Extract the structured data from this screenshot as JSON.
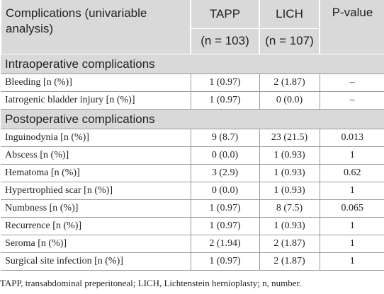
{
  "table": {
    "header": {
      "label": "Complications (univariable analysis)",
      "columns": [
        "TAPP",
        "LICH"
      ],
      "counts": [
        "(n = 103)",
        "(n = 107)"
      ],
      "p_value": "P-value"
    },
    "sections": [
      {
        "title": "Intraoperative complications",
        "rows": [
          [
            "Bleeding [n (%)]",
            "1 (0.97)",
            "2 (1.87)",
            "–"
          ],
          [
            "Iatrogenic bladder injury [n (%)]",
            "1 (0.97)",
            "0 (0.0)",
            "–"
          ]
        ]
      },
      {
        "title": "Postoperative complications",
        "rows": [
          [
            "Inguinodynia [n (%)]",
            "9 (8.7)",
            "23 (21.5)",
            "0.013"
          ],
          [
            "Abscess [n (%)]",
            "0 (0.0)",
            "1 (0.93)",
            "1"
          ],
          [
            "Hematoma [n (%)]",
            "3 (2.9)",
            "1 (0.93)",
            "0.62"
          ],
          [
            "Hypertrophied scar [n (%)]",
            "0 (0.0)",
            "1 (0.93)",
            "1"
          ],
          [
            "Numbness [n (%)]",
            "1 (0.97)",
            "8 (7.5)",
            "0.065"
          ],
          [
            "Recurrence [n (%)]",
            "1 (0.97)",
            "1 (0.93)",
            "1"
          ],
          [
            "Seroma [n (%)]",
            "2 (1.94)",
            "2 (1.87)",
            "1"
          ],
          [
            "Surgical site infection [n (%)]",
            "1 (0.97)",
            "2 (1.87)",
            "1"
          ]
        ]
      }
    ]
  },
  "footnote": "TAPP, transabdominal preperitoneal; LICH, Lichtenstein hernioplasty; n, number."
}
